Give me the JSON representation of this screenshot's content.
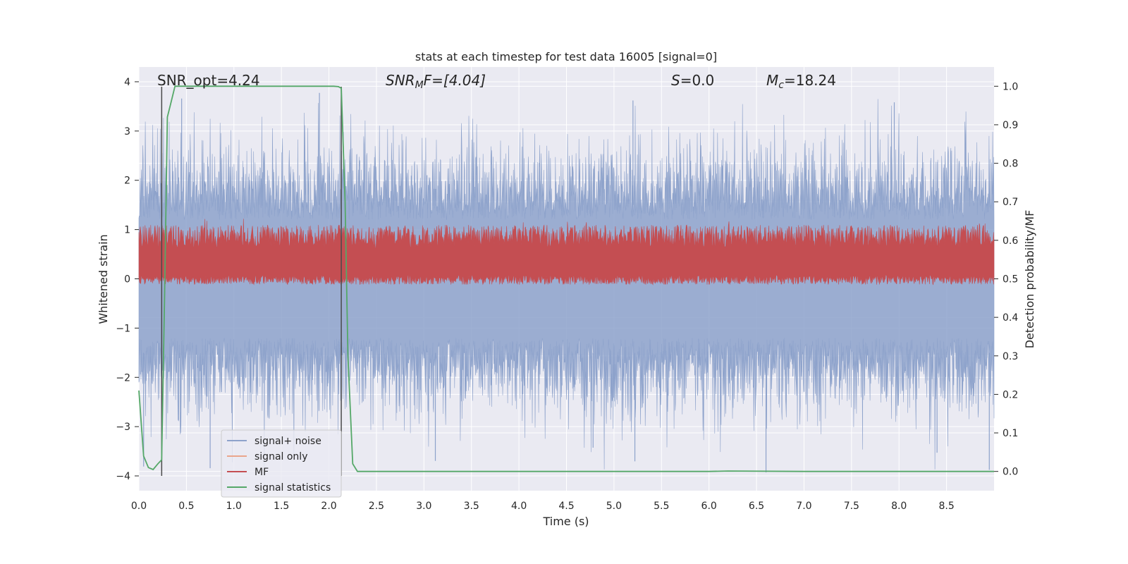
{
  "chart_data": {
    "type": "line",
    "title": "stats at each timestep for test data 16005 [signal=0]",
    "xlabel": "Time (s)",
    "ylabel": "Whitened strain",
    "y2label": "Detection probability/MF",
    "xlim": [
      0.0,
      9.0
    ],
    "ylim": [
      -4.3,
      4.3
    ],
    "y2lim": [
      -0.05,
      1.05
    ],
    "xticks": [
      "0.0",
      "0.5",
      "1.0",
      "1.5",
      "2.0",
      "2.5",
      "3.0",
      "3.5",
      "4.0",
      "4.5",
      "5.0",
      "5.5",
      "6.0",
      "6.5",
      "7.0",
      "7.5",
      "8.0",
      "8.5"
    ],
    "yticks": [
      "4",
      "3",
      "2",
      "1",
      "0",
      "−1",
      "−2",
      "−3",
      "−4"
    ],
    "y2ticks": [
      "1.0",
      "0.9",
      "0.8",
      "0.7",
      "0.6",
      "0.5",
      "0.4",
      "0.3",
      "0.2",
      "0.1",
      "0.0"
    ],
    "annotations": {
      "snr_opt": "SNR_opt=4.24",
      "snr_mf_main": "SNR",
      "snr_mf_sub": "M",
      "snr_mf_rest": "F=[4.04]",
      "s_main": "S",
      "s_rest": "=0.0",
      "mc_main": "M",
      "mc_sub": "c",
      "mc_rest": "=18.24"
    },
    "vlines": [
      0.24,
      2.13
    ],
    "series": [
      {
        "name": "signal+ noise",
        "color": "#8da2cb",
        "description": "noisy whitened strain, roughly ±2 with spikes to ±4"
      },
      {
        "name": "signal only",
        "color": "#eaa58c",
        "values": []
      },
      {
        "name": "MF",
        "color": "#c44e52",
        "description": "matched filter, fluctuating between ~0.0 and ~0.9"
      },
      {
        "name": "signal statistics",
        "color": "#55a868",
        "x": [
          0.0,
          0.05,
          0.1,
          0.15,
          0.2,
          0.24,
          0.27,
          0.3,
          0.33,
          0.38,
          0.45,
          0.6,
          0.8,
          1.0,
          1.5,
          2.0,
          2.05,
          2.1,
          2.13,
          2.17,
          2.2,
          2.25,
          2.3,
          2.5,
          3.0,
          4.0,
          5.0,
          6.0,
          6.2,
          7.0,
          8.0,
          9.0
        ],
        "values": [
          0.21,
          0.04,
          0.01,
          0.005,
          0.02,
          0.03,
          0.45,
          0.92,
          0.95,
          1.0,
          1.0,
          1.0,
          1.0,
          1.0,
          1.0,
          1.0,
          1.0,
          0.999,
          0.995,
          0.7,
          0.3,
          0.02,
          0.0,
          0.0,
          0.0,
          0.0,
          0.0,
          0.0,
          0.001,
          0.0,
          0.0,
          0.0
        ]
      }
    ],
    "legend": [
      "signal+ noise",
      "signal only",
      "MF",
      "signal statistics"
    ],
    "legend_position": "lower-left"
  }
}
